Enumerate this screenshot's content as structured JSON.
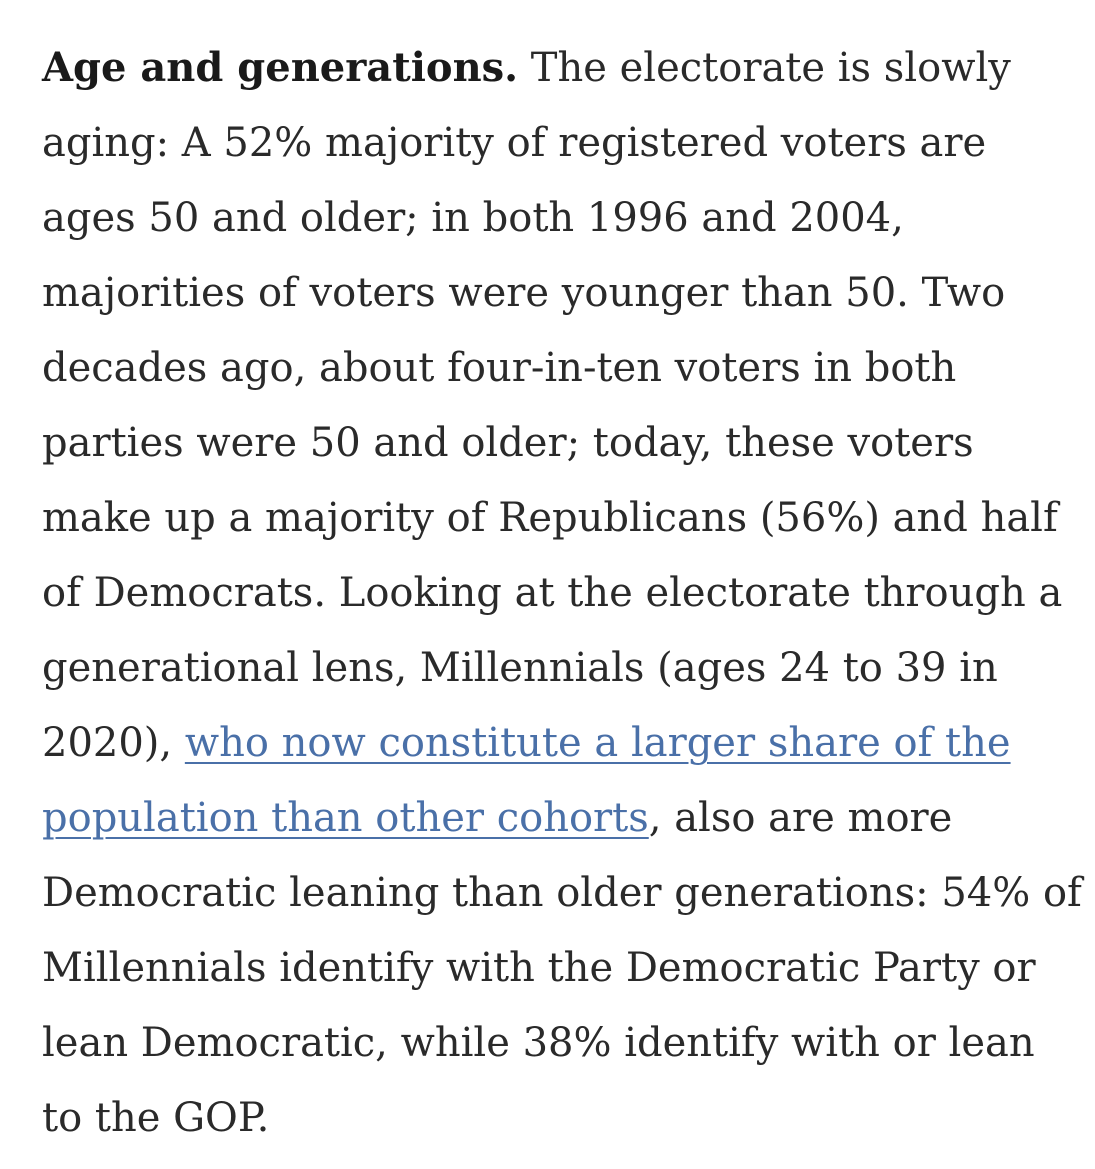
{
  "article": {
    "lead_in": "Age and generations.",
    "text_before_link": " The electorate is slowly aging: A 52% majority of registered voters are ages 50 and older; in both 1996 and 2004, majorities of voters were younger than 50. Two decades ago, about four-in-ten voters in both parties were 50 and older; today, these voters make up a majority of Republicans (56%) and half of Democrats. Looking at the electorate through a generational lens, Millennials (ages 24 to 39 in 2020), ",
    "link_text": "who now constitute a larger share of the population than other cohorts",
    "text_after_link": ", also are more Democratic leaning than older generations: 54% of Millennials identify with the Democratic Party or lean Democratic, while 38% identify with or lean to the GOP."
  },
  "colors": {
    "text": "#2a2a2a",
    "link": "#4a70a8",
    "background": "#ffffff"
  }
}
